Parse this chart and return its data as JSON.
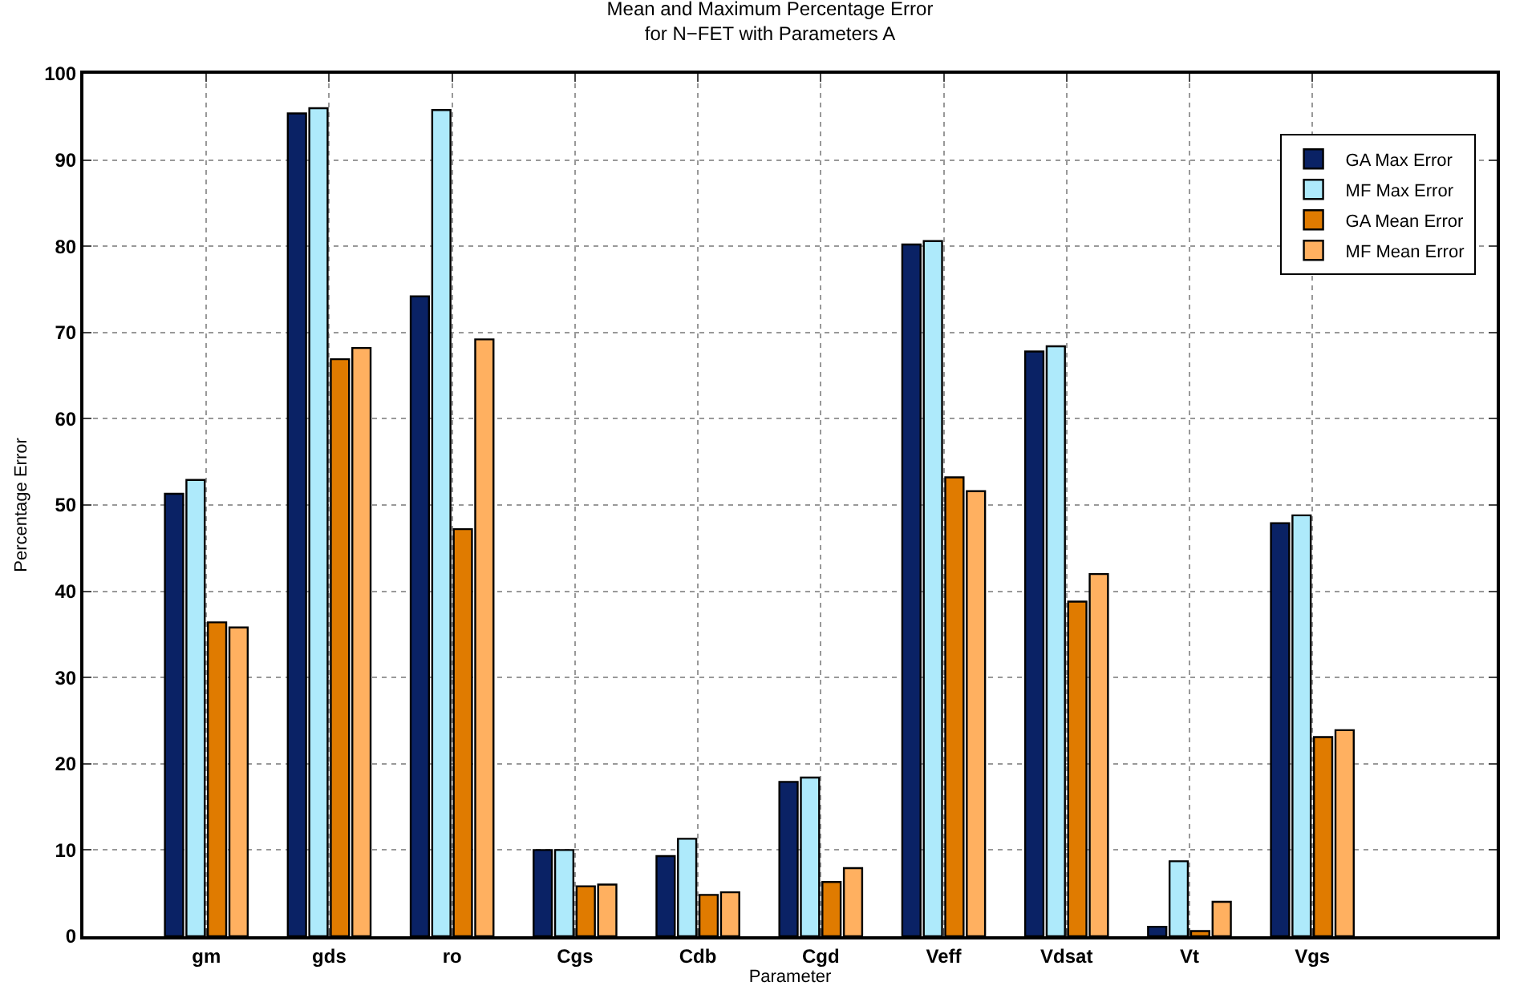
{
  "chart_data": {
    "type": "bar",
    "title": "Mean and Maximum Percentage Error\nfor N−FET with Parameters A",
    "xlabel": "Parameter",
    "ylabel": "Percentage Error",
    "categories": [
      "gm",
      "gds",
      "ro",
      "Cgs",
      "Cdb",
      "Cgd",
      "Veff",
      "Vdsat",
      "Vt",
      "Vgs"
    ],
    "series": [
      {
        "name": "GA Max Error",
        "color": "#0a2265",
        "values": [
          51.3,
          95.4,
          74.2,
          10.0,
          9.3,
          17.9,
          80.2,
          67.8,
          1.1,
          47.9
        ]
      },
      {
        "name": "MF Max Error",
        "color": "#aeeafb",
        "values": [
          52.9,
          96.0,
          95.8,
          10.0,
          11.3,
          18.4,
          80.6,
          68.4,
          8.7,
          48.8
        ]
      },
      {
        "name": "GA Mean Error",
        "color": "#e07b00",
        "values": [
          36.4,
          66.9,
          47.2,
          5.8,
          4.8,
          6.3,
          53.2,
          38.8,
          0.6,
          23.1
        ]
      },
      {
        "name": "MF Mean Error",
        "color": "#ffb060",
        "values": [
          35.8,
          68.2,
          69.2,
          6.0,
          5.1,
          7.9,
          51.6,
          42.0,
          4.0,
          23.9
        ]
      }
    ],
    "ylim": [
      0,
      100
    ],
    "yticks": [
      0,
      10,
      20,
      30,
      40,
      50,
      60,
      70,
      80,
      90,
      100
    ],
    "grid": true,
    "legend": "top right"
  }
}
